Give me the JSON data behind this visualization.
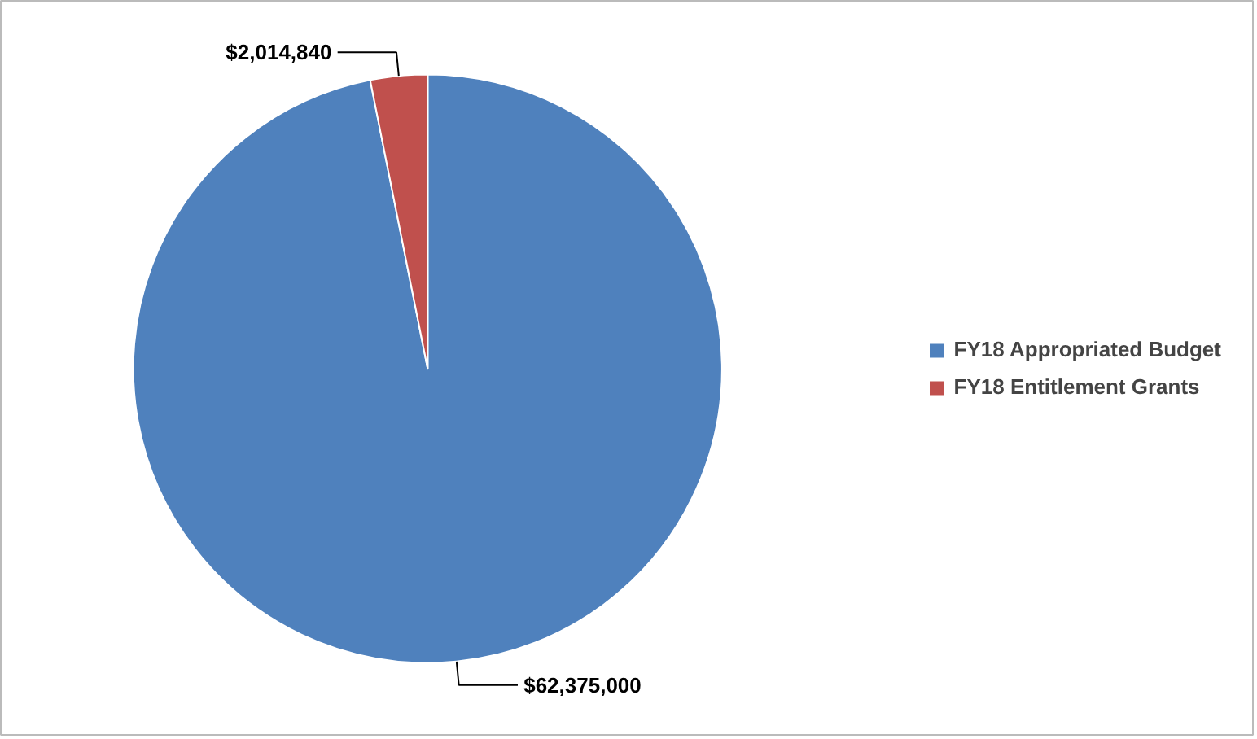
{
  "chart_data": {
    "type": "pie",
    "categories": [
      "FY18 Appropriated Budget",
      "FY18 Entitlement Grants"
    ],
    "values": [
      62375000,
      2014840
    ],
    "colors": [
      "#4f81bd",
      "#c0504d"
    ],
    "value_labels": [
      "$62,375,000",
      "$2,014,840"
    ],
    "legend": "right"
  }
}
